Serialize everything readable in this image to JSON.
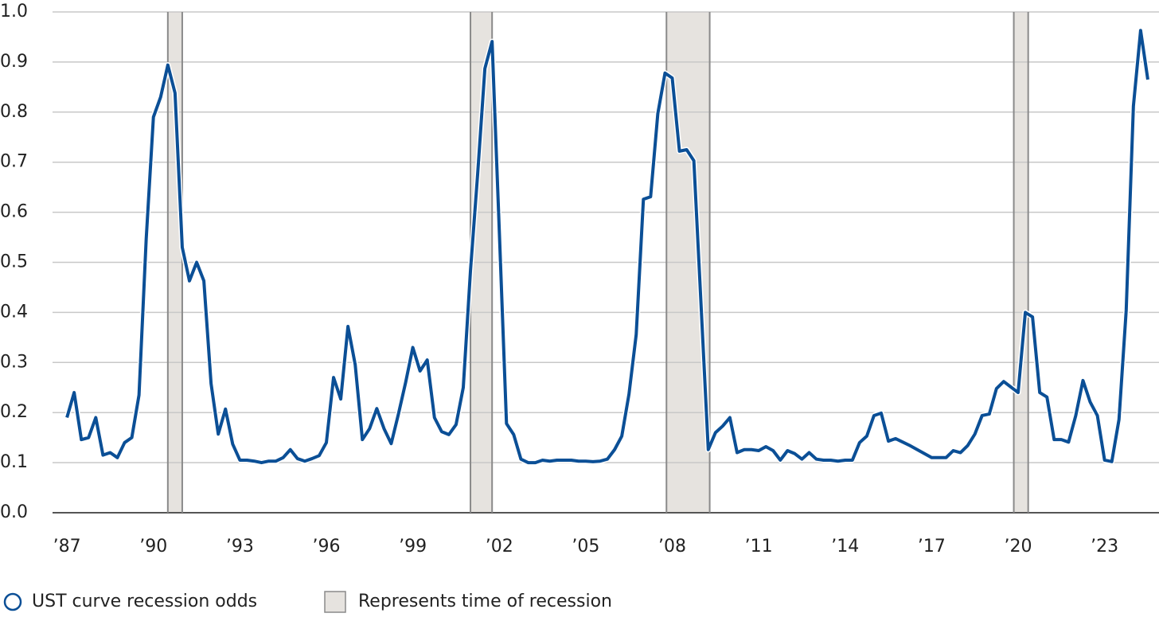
{
  "chart_data": {
    "type": "line",
    "x": [
      1987,
      1987.25,
      1987.5,
      1987.75,
      1988,
      1988.25,
      1988.5,
      1988.75,
      1989,
      1989.25,
      1989.5,
      1989.75,
      1990,
      1990.25,
      1990.5,
      1990.75,
      1991,
      1991.25,
      1991.5,
      1991.75,
      1992,
      1992.25,
      1992.5,
      1992.75,
      1993,
      1993.25,
      1993.5,
      1993.75,
      1994,
      1994.25,
      1994.5,
      1994.75,
      1995,
      1995.25,
      1995.5,
      1995.75,
      1996,
      1996.25,
      1996.5,
      1996.75,
      1997,
      1997.25,
      1997.5,
      1997.75,
      1998,
      1998.25,
      1998.5,
      1998.75,
      1999,
      1999.25,
      1999.5,
      1999.75,
      2000,
      2000.25,
      2000.5,
      2000.75,
      2001,
      2001.25,
      2001.5,
      2001.75,
      2002,
      2002.25,
      2002.5,
      2002.75,
      2003,
      2003.25,
      2003.5,
      2003.75,
      2004,
      2004.25,
      2004.5,
      2004.75,
      2005,
      2005.25,
      2005.5,
      2005.75,
      2006,
      2006.25,
      2006.5,
      2006.75,
      2007,
      2007.25,
      2007.5,
      2007.75,
      2008,
      2008.25,
      2008.5,
      2008.75,
      2009,
      2009.25,
      2009.5,
      2009.75,
      2010,
      2010.25,
      2010.5,
      2010.75,
      2011,
      2011.25,
      2011.5,
      2011.75,
      2012,
      2012.25,
      2012.5,
      2012.75,
      2013,
      2013.25,
      2013.5,
      2013.75,
      2014,
      2014.25,
      2014.5,
      2014.75,
      2015,
      2015.25,
      2015.5,
      2015.75,
      2016,
      2016.25,
      2016.5,
      2016.75,
      2017,
      2017.25,
      2017.5,
      2017.75,
      2018,
      2018.25,
      2018.5,
      2018.75,
      2019,
      2019.25,
      2019.5,
      2019.75,
      2020,
      2020.25,
      2020.5,
      2020.75,
      2021,
      2021.25,
      2021.5,
      2021.75,
      2022,
      2022.25,
      2022.5,
      2022.75,
      2023,
      2023.25,
      2023.5,
      2023.75,
      2024,
      2024.25,
      2024.5
    ],
    "series": [
      {
        "name": "UST curve recession odds",
        "color": "#0b4f96",
        "values": [
          0.19,
          0.24,
          0.146,
          0.15,
          0.19,
          0.115,
          0.12,
          0.11,
          0.14,
          0.15,
          0.235,
          0.547,
          0.79,
          0.83,
          0.894,
          0.838,
          0.53,
          0.463,
          0.5,
          0.463,
          0.258,
          0.157,
          0.207,
          0.137,
          0.105,
          0.105,
          0.103,
          0.1,
          0.103,
          0.103,
          0.11,
          0.126,
          0.108,
          0.103,
          0.108,
          0.114,
          0.14,
          0.27,
          0.227,
          0.372,
          0.296,
          0.146,
          0.168,
          0.208,
          0.168,
          0.138,
          0.197,
          0.26,
          0.33,
          0.283,
          0.305,
          0.19,
          0.162,
          0.156,
          0.176,
          0.25,
          0.483,
          0.677,
          0.887,
          0.941,
          0.563,
          0.178,
          0.156,
          0.107,
          0.1,
          0.1,
          0.105,
          0.103,
          0.105,
          0.105,
          0.105,
          0.103,
          0.103,
          0.102,
          0.103,
          0.107,
          0.126,
          0.153,
          0.237,
          0.356,
          0.626,
          0.631,
          0.797,
          0.878,
          0.868,
          0.722,
          0.725,
          0.703,
          0.415,
          0.126,
          0.16,
          0.173,
          0.19,
          0.12,
          0.126,
          0.126,
          0.124,
          0.132,
          0.124,
          0.105,
          0.124,
          0.118,
          0.107,
          0.12,
          0.107,
          0.105,
          0.105,
          0.103,
          0.105,
          0.105,
          0.14,
          0.153,
          0.194,
          0.199,
          0.143,
          0.148,
          0.141,
          0.134,
          0.126,
          0.118,
          0.11,
          0.11,
          0.11,
          0.124,
          0.12,
          0.134,
          0.157,
          0.194,
          0.197,
          0.248,
          0.262,
          0.251,
          0.24,
          0.4,
          0.391,
          0.24,
          0.231,
          0.146,
          0.146,
          0.141,
          0.194,
          0.264,
          0.221,
          0.194,
          0.105,
          0.102,
          0.186,
          0.404,
          0.812,
          0.963,
          0.865
        ]
      }
    ],
    "recession_label": "Represents time of recession",
    "recession_color": "#e6e3df",
    "recessions": [
      {
        "start": 1990.5,
        "end": 1991.0
      },
      {
        "start": 2001.0,
        "end": 2001.75
      },
      {
        "start": 2007.8,
        "end": 2009.3
      },
      {
        "start": 2019.85,
        "end": 2020.35
      }
    ],
    "xlim": [
      1986.5,
      2024.75
    ],
    "xticks": [
      {
        "value": 1987,
        "label": "’87"
      },
      {
        "value": 1990,
        "label": "’90"
      },
      {
        "value": 1993,
        "label": "’93"
      },
      {
        "value": 1996,
        "label": "’96"
      },
      {
        "value": 1999,
        "label": "’99"
      },
      {
        "value": 2002,
        "label": "’02"
      },
      {
        "value": 2005,
        "label": "’05"
      },
      {
        "value": 2008,
        "label": "’08"
      },
      {
        "value": 2011,
        "label": "’11"
      },
      {
        "value": 2014,
        "label": "’14"
      },
      {
        "value": 2017,
        "label": "’17"
      },
      {
        "value": 2020,
        "label": "’20"
      },
      {
        "value": 2023,
        "label": "’23"
      }
    ],
    "ylim": [
      0,
      1
    ],
    "yticks": [
      {
        "value": 0,
        "label": "0.0"
      },
      0.1,
      0.2,
      0.3,
      0.4,
      0.5,
      0.6,
      0.7,
      0.8,
      0.9,
      {
        "value": 1,
        "label": "1.0"
      }
    ],
    "grid": true,
    "legend": "bottom-left"
  }
}
